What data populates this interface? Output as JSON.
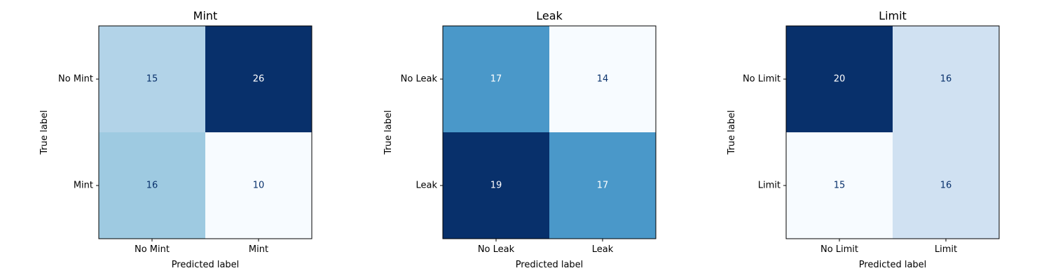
{
  "chart_data": [
    {
      "type": "heatmap",
      "title": "Mint",
      "xlabel": "Predicted label",
      "ylabel": "True label",
      "x_categories": [
        "No Mint",
        "Mint"
      ],
      "y_categories": [
        "No Mint",
        "Mint"
      ],
      "matrix": [
        [
          15,
          26
        ],
        [
          16,
          10
        ]
      ],
      "colormap": "Blues",
      "grid": false
    },
    {
      "type": "heatmap",
      "title": "Leak",
      "xlabel": "Predicted label",
      "ylabel": "True label",
      "x_categories": [
        "No Leak",
        "Leak"
      ],
      "y_categories": [
        "No Leak",
        "Leak"
      ],
      "matrix": [
        [
          17,
          14
        ],
        [
          19,
          17
        ]
      ],
      "colormap": "Blues",
      "grid": false
    },
    {
      "type": "heatmap",
      "title": "Limit",
      "xlabel": "Predicted label",
      "ylabel": "True label",
      "x_categories": [
        "No Limit",
        "Limit"
      ],
      "y_categories": [
        "No Limit",
        "Limit"
      ],
      "matrix": [
        [
          20,
          16
        ],
        [
          15,
          16
        ]
      ],
      "colormap": "Blues",
      "grid": false
    }
  ]
}
